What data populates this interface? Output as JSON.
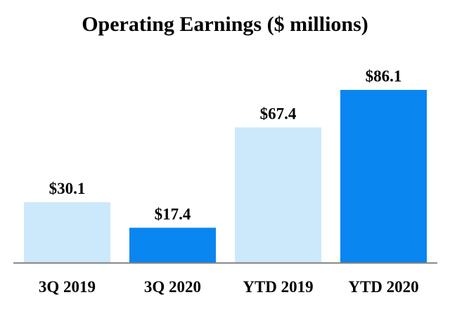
{
  "chart_data": {
    "type": "bar",
    "title": "Operating Earnings ($ millions)",
    "categories": [
      "3Q 2019",
      "3Q 2020",
      "YTD 2019",
      "YTD 2020"
    ],
    "values": [
      30.1,
      17.4,
      67.4,
      86.1
    ],
    "data_labels": [
      "$30.1",
      "$17.4",
      "$67.4",
      "$86.1"
    ],
    "bar_colors": [
      "#cce9fb",
      "#0a86f0",
      "#cce9fb",
      "#0a86f0"
    ],
    "xlabel": "",
    "ylabel": "",
    "ylim": [
      0,
      86.1
    ],
    "grid": false,
    "legend": "none"
  },
  "colors": {
    "axis": "#7f7f7f",
    "text": "#000000"
  }
}
